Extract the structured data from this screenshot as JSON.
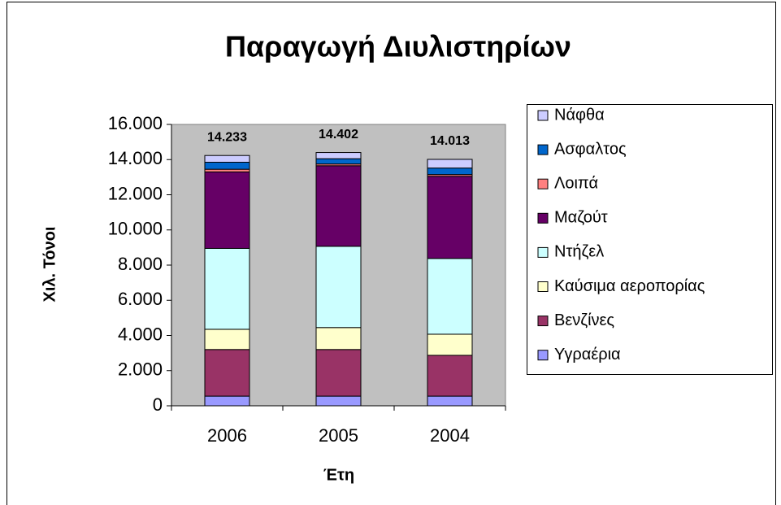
{
  "chart_data": {
    "type": "stacked-bar",
    "title": "Παραγωγή Διυλιστηρίων",
    "x_label": "Έτη",
    "y_label": "Χιλ. Τόνοι",
    "categories": [
      "2006",
      "2005",
      "2004"
    ],
    "series": [
      {
        "name": "Υγραέρια",
        "color": "#9999ff",
        "values": [
          550,
          550,
          550
        ]
      },
      {
        "name": "Βενζίνες",
        "color": "#993366",
        "values": [
          2650,
          2650,
          2320
        ]
      },
      {
        "name": "Καύσιμα αεροπορίας",
        "color": "#ffffcc",
        "values": [
          1150,
          1250,
          1200
        ]
      },
      {
        "name": "Ντήζελ",
        "color": "#ccffff",
        "values": [
          4600,
          4620,
          4310
        ]
      },
      {
        "name": "Μαζούτ",
        "color": "#660066",
        "values": [
          4350,
          4580,
          4670
        ]
      },
      {
        "name": "Λοιπά",
        "color": "#ff8080",
        "values": [
          150,
          100,
          100
        ]
      },
      {
        "name": "Ασφαλτος",
        "color": "#0066cc",
        "values": [
          400,
          300,
          370
        ]
      },
      {
        "name": "Νάφθα",
        "color": "#ccccff",
        "values": [
          383,
          352,
          493
        ]
      }
    ],
    "totals": {
      "values": [
        14233,
        14402,
        14013
      ],
      "value_labels": [
        "14.233",
        "14.402",
        "14.013"
      ]
    },
    "ylim": [
      0,
      16000
    ],
    "yticks": [
      0,
      {
        "value": 2000,
        "label": "2.000"
      },
      {
        "value": 4000,
        "label": "4.000"
      },
      {
        "value": 6000,
        "label": "6.000"
      },
      {
        "value": 8000,
        "label": "8.000"
      },
      {
        "value": 10000,
        "label": "10.000"
      },
      {
        "value": 12000,
        "label": "12.000"
      },
      {
        "value": 14000,
        "label": "14.000"
      },
      {
        "value": 16000,
        "label": "16.000"
      }
    ],
    "plot_background": "#c0c0c0",
    "legend": "right"
  }
}
